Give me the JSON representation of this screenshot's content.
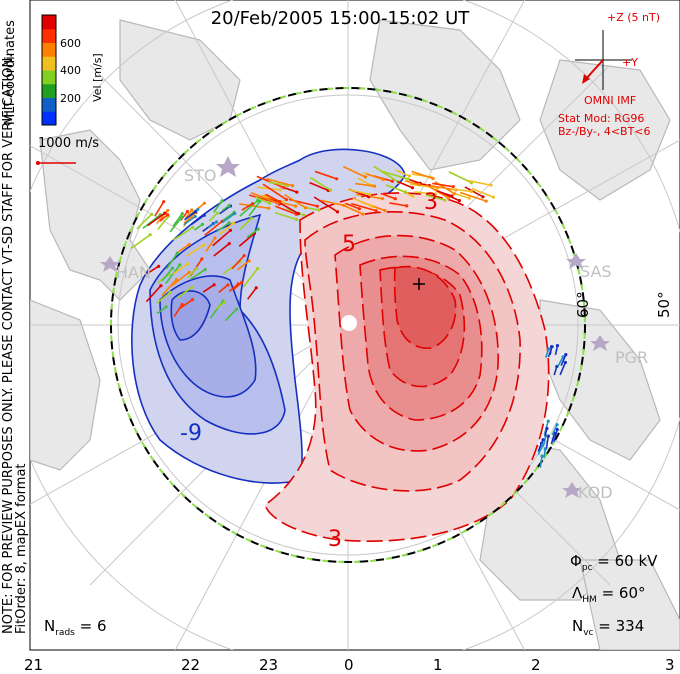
{
  "title": "20/Feb/2005 15:00-15:02 UT",
  "colorbar": {
    "label": "Vel [m/s]",
    "ticks": [
      "600",
      "400",
      "200"
    ],
    "colors": [
      "#0030ff",
      "#1060c8",
      "#20a020",
      "#80d020",
      "#f0c020",
      "#ff8000",
      "#ff3000",
      "#e00000"
    ]
  },
  "side_text": {
    "coords": "MLT coordinates",
    "note": "NOTE: FOR PREVIEW PURPOSES ONLY. PLEASE CONTACT VT-SD STAFF FOR VERIFICATION.",
    "fitorder": "FitOrder: 8, mapEX format"
  },
  "velocity_scale": "1000 m/s",
  "imf": {
    "z_label": "+Z (5 nT)",
    "y_label": "+Y",
    "source": "OMNI IMF",
    "model_line1": "Stat Mod: RG96",
    "model_line2": "Bz-/By-, 4<BT<6"
  },
  "stations": [
    "STO",
    "HAN",
    "SAS",
    "PGR",
    "KOD"
  ],
  "latitude_labels": [
    "60°",
    "50°"
  ],
  "contour_labels": {
    "neg": "-9",
    "pos1": "3",
    "pos2": "5",
    "pos3": "3"
  },
  "stats": {
    "phi_pc": "= 60 kV",
    "lambda_hm": "= 60°",
    "n_vc": "= 334",
    "n_rads": "= 6"
  },
  "mlt_axis": [
    "21",
    "22",
    "23",
    "0",
    "1",
    "2",
    "3"
  ],
  "chart_data": {
    "type": "polar-convection-map",
    "cross_polar_cap_potential_kV": 60,
    "heppner_maynard_boundary_lat_deg": 60,
    "n_vectors": 334,
    "n_radars": 6,
    "velocity_colorbar_ticks_m_per_s": [
      200,
      400,
      600
    ]
  }
}
